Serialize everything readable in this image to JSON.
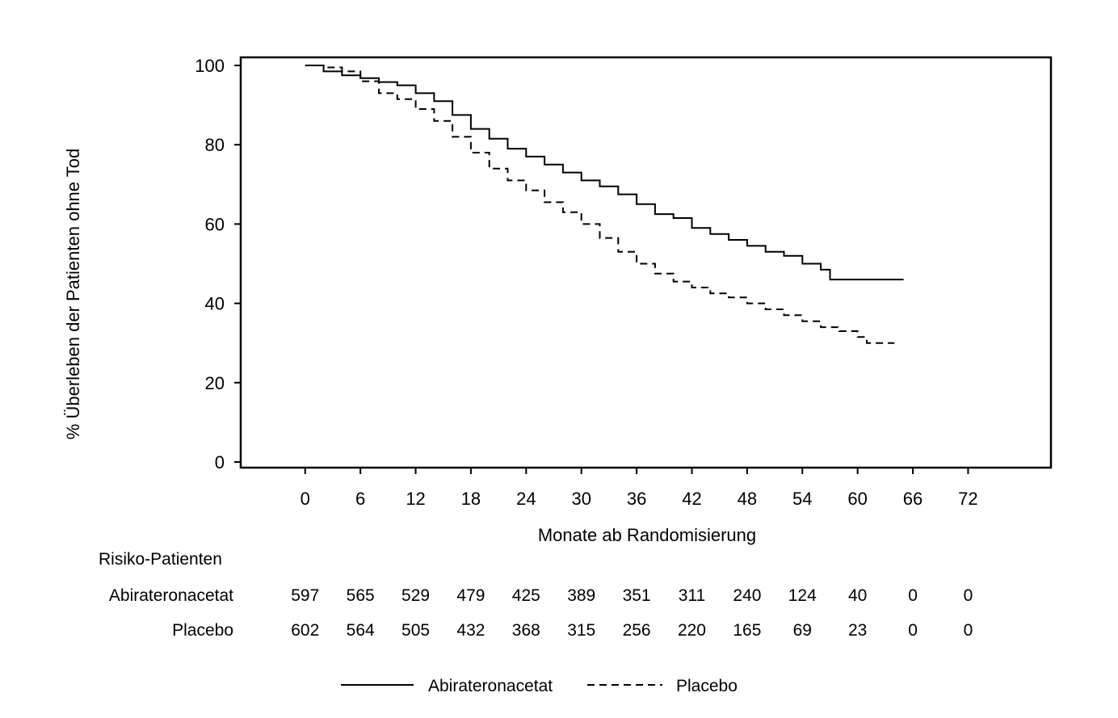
{
  "chart_data": {
    "type": "line",
    "title": "",
    "xlabel": "Monate ab Randomisierung",
    "ylabel": "% Überleben der Patienten ohne Tod",
    "xlim": [
      -7,
      81
    ],
    "ylim": [
      0,
      100
    ],
    "xticks": [
      "0",
      "6",
      "12",
      "18",
      "24",
      "30",
      "36",
      "42",
      "48",
      "54",
      "60",
      "66",
      "72"
    ],
    "yticks": [
      "0",
      "20",
      "40",
      "60",
      "80",
      "100"
    ],
    "grid": false,
    "legend_position": "bottom",
    "series": [
      {
        "name": "Abirateronacetat",
        "style": "solid",
        "color": "#000000",
        "x": [
          0,
          2,
          4,
          6,
          8,
          10,
          12,
          14,
          16,
          18,
          20,
          22,
          24,
          26,
          28,
          30,
          32,
          34,
          36,
          38,
          40,
          42,
          44,
          46,
          48,
          50,
          52,
          54,
          56,
          57,
          60,
          65
        ],
        "y": [
          100,
          98.5,
          97.5,
          96.8,
          95.8,
          95,
          93,
          91,
          87.5,
          84,
          81.5,
          79,
          77,
          75,
          73,
          71,
          69.5,
          67.5,
          65,
          62.5,
          61.5,
          59,
          57.5,
          56,
          54.5,
          53,
          52,
          50,
          48.5,
          46,
          46,
          46
        ]
      },
      {
        "name": "Placebo",
        "style": "dashed",
        "color": "#000000",
        "x": [
          0,
          2,
          4,
          6,
          8,
          10,
          12,
          14,
          16,
          18,
          20,
          22,
          24,
          26,
          28,
          30,
          32,
          34,
          36,
          38,
          40,
          42,
          44,
          46,
          48,
          50,
          52,
          54,
          56,
          58,
          60,
          61,
          64
        ],
        "y": [
          100,
          99.5,
          98.5,
          96,
          93,
          91.5,
          89,
          86,
          82,
          78,
          74,
          71,
          68.5,
          65.5,
          63,
          60,
          56.5,
          53,
          50,
          47.5,
          45.5,
          44,
          42.5,
          41.5,
          40,
          38.5,
          37,
          35.5,
          34,
          33,
          31.5,
          30,
          30
        ]
      }
    ]
  },
  "risk_table": {
    "title": "Risiko-Patienten",
    "rows": [
      {
        "label": "Abirateronacetat",
        "values": [
          "597",
          "565",
          "529",
          "479",
          "425",
          "389",
          "351",
          "311",
          "240",
          "124",
          "40",
          "0",
          "0"
        ]
      },
      {
        "label": "Placebo",
        "values": [
          "602",
          "564",
          "505",
          "432",
          "368",
          "315",
          "256",
          "220",
          "165",
          "69",
          "23",
          "0",
          "0"
        ]
      }
    ]
  },
  "legend": {
    "items": [
      {
        "label": "Abirateronacetat",
        "style": "solid"
      },
      {
        "label": "Placebo",
        "style": "dashed"
      }
    ]
  }
}
